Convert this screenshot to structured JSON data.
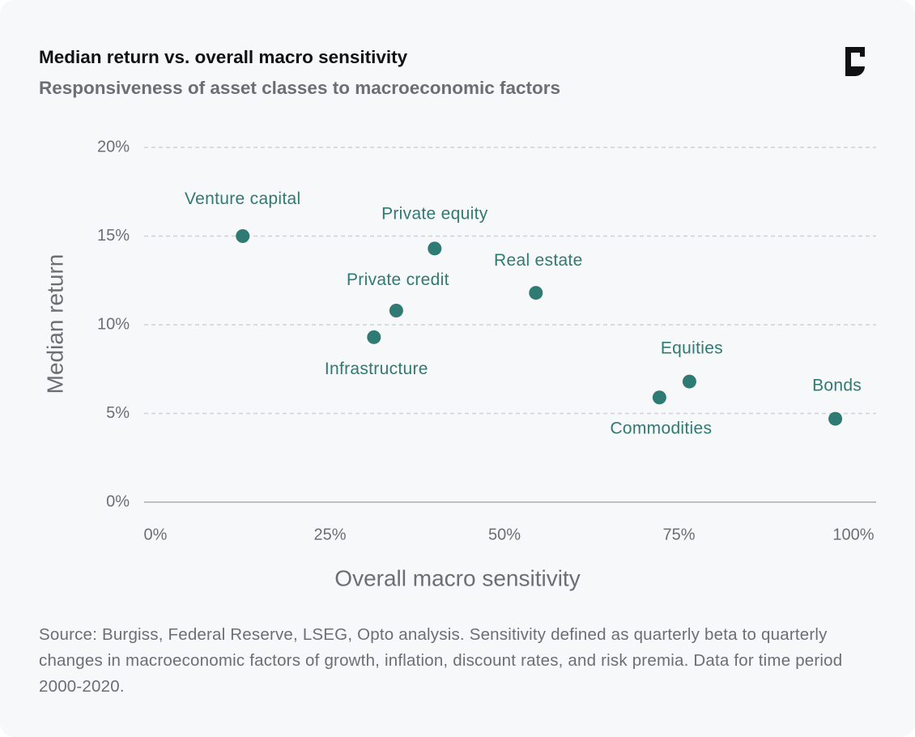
{
  "chart_data": {
    "type": "scatter",
    "title": "Median return vs. overall macro sensitivity",
    "subtitle": "Responsiveness of asset classes to macroeconomic factors",
    "x_label": "Overall macro sensitivity",
    "y_label": "Median return",
    "note": "Source: Burgiss, Federal Reserve, LSEG, Opto analysis. Sensitivity defined as quarterly beta to quarterly changes in macroeconomic factors of growth, inflation, discount rates, and risk premia. Data for time period 2000-2020.",
    "labels": [
      "Venture capital",
      "Private equity",
      "Real estate",
      "Private credit",
      "Infrastructure",
      "Equities",
      "Commodities",
      "Bonds"
    ],
    "x": [
      12.5,
      40,
      54.5,
      34.5,
      31.3,
      76.5,
      72.2,
      97.4
    ],
    "values": [
      15.0,
      14.3,
      11.8,
      10.8,
      9.3,
      6.8,
      5.9,
      4.7
    ],
    "color": "#2f7a73",
    "xlim": [
      0,
      100
    ],
    "ylim": [
      0,
      20
    ],
    "xticks": [
      {
        "value": 0,
        "label": "0%"
      },
      {
        "value": 25,
        "label": "25%"
      },
      {
        "value": 50,
        "label": "50%"
      },
      {
        "value": 75,
        "label": "75%"
      },
      {
        "value": 100,
        "label": "100%"
      }
    ],
    "yticks": [
      {
        "value": 0,
        "label": "0%"
      },
      {
        "value": 5,
        "label": "5%"
      },
      {
        "value": 10,
        "label": "10%"
      },
      {
        "value": 15,
        "label": "15%"
      },
      {
        "value": 20,
        "label": "20%"
      }
    ],
    "grid": true
  }
}
